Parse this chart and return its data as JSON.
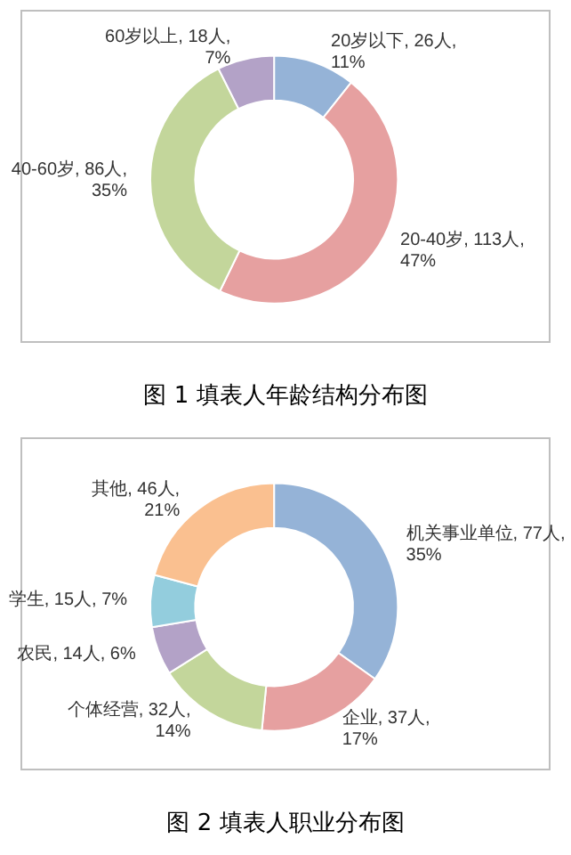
{
  "chart_data": [
    {
      "type": "donut",
      "title": "图 1 填表人年龄结构分布图",
      "categories": [
        "20岁以下",
        "20-40岁",
        "40-60岁",
        "60岁以上"
      ],
      "values": [
        26,
        113,
        86,
        18
      ],
      "value_labels": [
        "26人, 11%",
        "113人, 47%",
        "86人, 35%",
        "18人, 7%"
      ],
      "colors": [
        "#95b3d7",
        "#e6a0a0",
        "#c3d69b",
        "#b3a2c7"
      ]
    },
    {
      "type": "donut",
      "title": "图 2 填表人职业分布图",
      "categories": [
        "机关事业单位",
        "企业",
        "个体经营",
        "农民",
        "学生",
        "其他"
      ],
      "values": [
        77,
        37,
        32,
        14,
        15,
        46
      ],
      "value_labels": [
        "77人, 35%",
        "37人, 17%",
        "32人, 14%",
        "14人, 6%",
        "15人, 7%",
        "46人, 21%"
      ],
      "colors": [
        "#95b3d7",
        "#e6a0a0",
        "#c3d69b",
        "#b3a2c7",
        "#93cddd",
        "#fac090"
      ]
    }
  ]
}
